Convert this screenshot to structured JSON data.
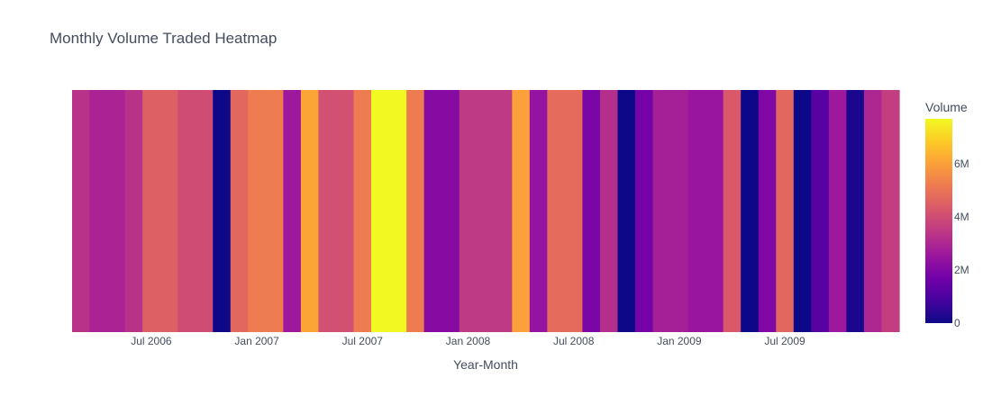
{
  "chart_data": {
    "type": "heatmap",
    "title": "Monthly Volume Traded Heatmap",
    "xlabel": "Year-Month",
    "ylabel": "",
    "colorbar": {
      "title": "Volume",
      "range": [
        0,
        7700000
      ],
      "ticks": [
        0,
        2000000,
        4000000,
        6000000
      ],
      "tick_labels": [
        "0",
        "2M",
        "4M",
        "6M"
      ],
      "colorscale": [
        "#0d0887",
        "#46039f",
        "#7201a8",
        "#9c179e",
        "#bd3786",
        "#d8576b",
        "#ed7953",
        "#fb9f3a",
        "#fdca26",
        "#f0f921"
      ]
    },
    "x_tick_labels": [
      "Jul 2006",
      "Jan 2007",
      "Jul 2007",
      "Jan 2008",
      "Jul 2008",
      "Jan 2009",
      "Jul 2009"
    ],
    "months": [
      "2006-03",
      "2006-04",
      "2006-05",
      "2006-06",
      "2006-07",
      "2006-08",
      "2006-09",
      "2006-10",
      "2006-11",
      "2006-12",
      "2007-01",
      "2007-02",
      "2007-03",
      "2007-04",
      "2007-05",
      "2007-06",
      "2007-07",
      "2007-08",
      "2007-09",
      "2007-10",
      "2007-11",
      "2007-12",
      "2008-01",
      "2008-02",
      "2008-03",
      "2008-04",
      "2008-05",
      "2008-06",
      "2008-07",
      "2008-08",
      "2008-09",
      "2008-10",
      "2008-11",
      "2008-12",
      "2009-01",
      "2009-02",
      "2009-03",
      "2009-04",
      "2009-05",
      "2009-06",
      "2009-07",
      "2009-08",
      "2009-09",
      "2009-10",
      "2009-11",
      "2009-12",
      "2010-01"
    ],
    "values": [
      3300000,
      2900000,
      2900000,
      3300000,
      4500000,
      4500000,
      4000000,
      4000000,
      0,
      4700000,
      5200000,
      5200000,
      2600000,
      6100000,
      4100000,
      4100000,
      5200000,
      7700000,
      7700000,
      5200000,
      2100000,
      2100000,
      3500000,
      3500000,
      3500000,
      6000000,
      2400000,
      4800000,
      4800000,
      1900000,
      3200000,
      0,
      1800000,
      2800000,
      2800000,
      2500000,
      2500000,
      4300000,
      0,
      2000000,
      4700000,
      0,
      1200000,
      2600000,
      200000,
      3000000,
      3600000
    ]
  }
}
